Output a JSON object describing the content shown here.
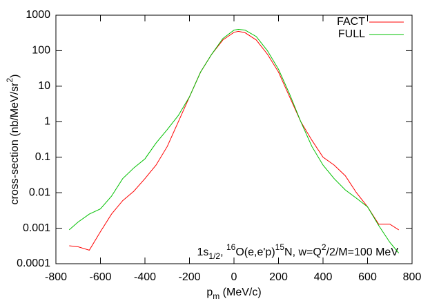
{
  "chart_data": {
    "type": "line",
    "x_label": [
      {
        "text": "p"
      },
      {
        "text": "m",
        "shift": "sub"
      },
      {
        "text": " (MeV/c)"
      }
    ],
    "y_label": [
      {
        "text": "cross-section (nb/MeV/sr"
      },
      {
        "text": "2",
        "shift": "super"
      },
      {
        "text": ")"
      }
    ],
    "annotation": [
      {
        "text": "1s"
      },
      {
        "text": "1/2",
        "shift": "sub"
      },
      {
        "text": ", "
      },
      {
        "text": "16",
        "shift": "super"
      },
      {
        "text": "O(e,e'p)"
      },
      {
        "text": "15",
        "shift": "super"
      },
      {
        "text": "N, w=Q"
      },
      {
        "text": "2",
        "shift": "super"
      },
      {
        "text": "/2/M=100 MeV"
      }
    ],
    "x": [
      -740,
      -700,
      -650,
      -600,
      -550,
      -500,
      -450,
      -400,
      -350,
      -300,
      -250,
      -200,
      -150,
      -100,
      -50,
      0,
      20,
      50,
      100,
      150,
      200,
      250,
      300,
      350,
      400,
      450,
      500,
      550,
      600,
      650,
      700,
      740
    ],
    "series": [
      {
        "name": "FACT",
        "color": "#ff0000",
        "values": [
          0.00032,
          0.0003,
          0.00024,
          0.0008,
          0.0025,
          0.006,
          0.011,
          0.025,
          0.06,
          0.2,
          1,
          5,
          25,
          80,
          200,
          330,
          350,
          320,
          200,
          80,
          25,
          5,
          1,
          0.3,
          0.1,
          0.06,
          0.03,
          0.01,
          0.004,
          0.0013,
          0.0013,
          0.0009
        ]
      },
      {
        "name": "FULL",
        "color": "#00c000",
        "values": [
          0.0009,
          0.0015,
          0.0025,
          0.0035,
          0.008,
          0.025,
          0.05,
          0.09,
          0.25,
          0.6,
          1.5,
          5,
          25,
          80,
          220,
          380,
          400,
          380,
          250,
          100,
          30,
          6,
          1,
          0.2,
          0.06,
          0.025,
          0.012,
          0.007,
          0.004,
          0.0012,
          0.0004,
          0.0002
        ]
      }
    ],
    "xlim": [
      -800,
      800
    ],
    "xticks": [
      -800,
      -600,
      -400,
      -200,
      0,
      200,
      400,
      600,
      800
    ],
    "ylim": [
      0.0001,
      1000
    ],
    "yticks": [
      0.0001,
      0.001,
      0.01,
      0.1,
      1,
      10,
      100,
      1000
    ],
    "y_scale": "log",
    "grid": false,
    "legend": "top-right"
  }
}
